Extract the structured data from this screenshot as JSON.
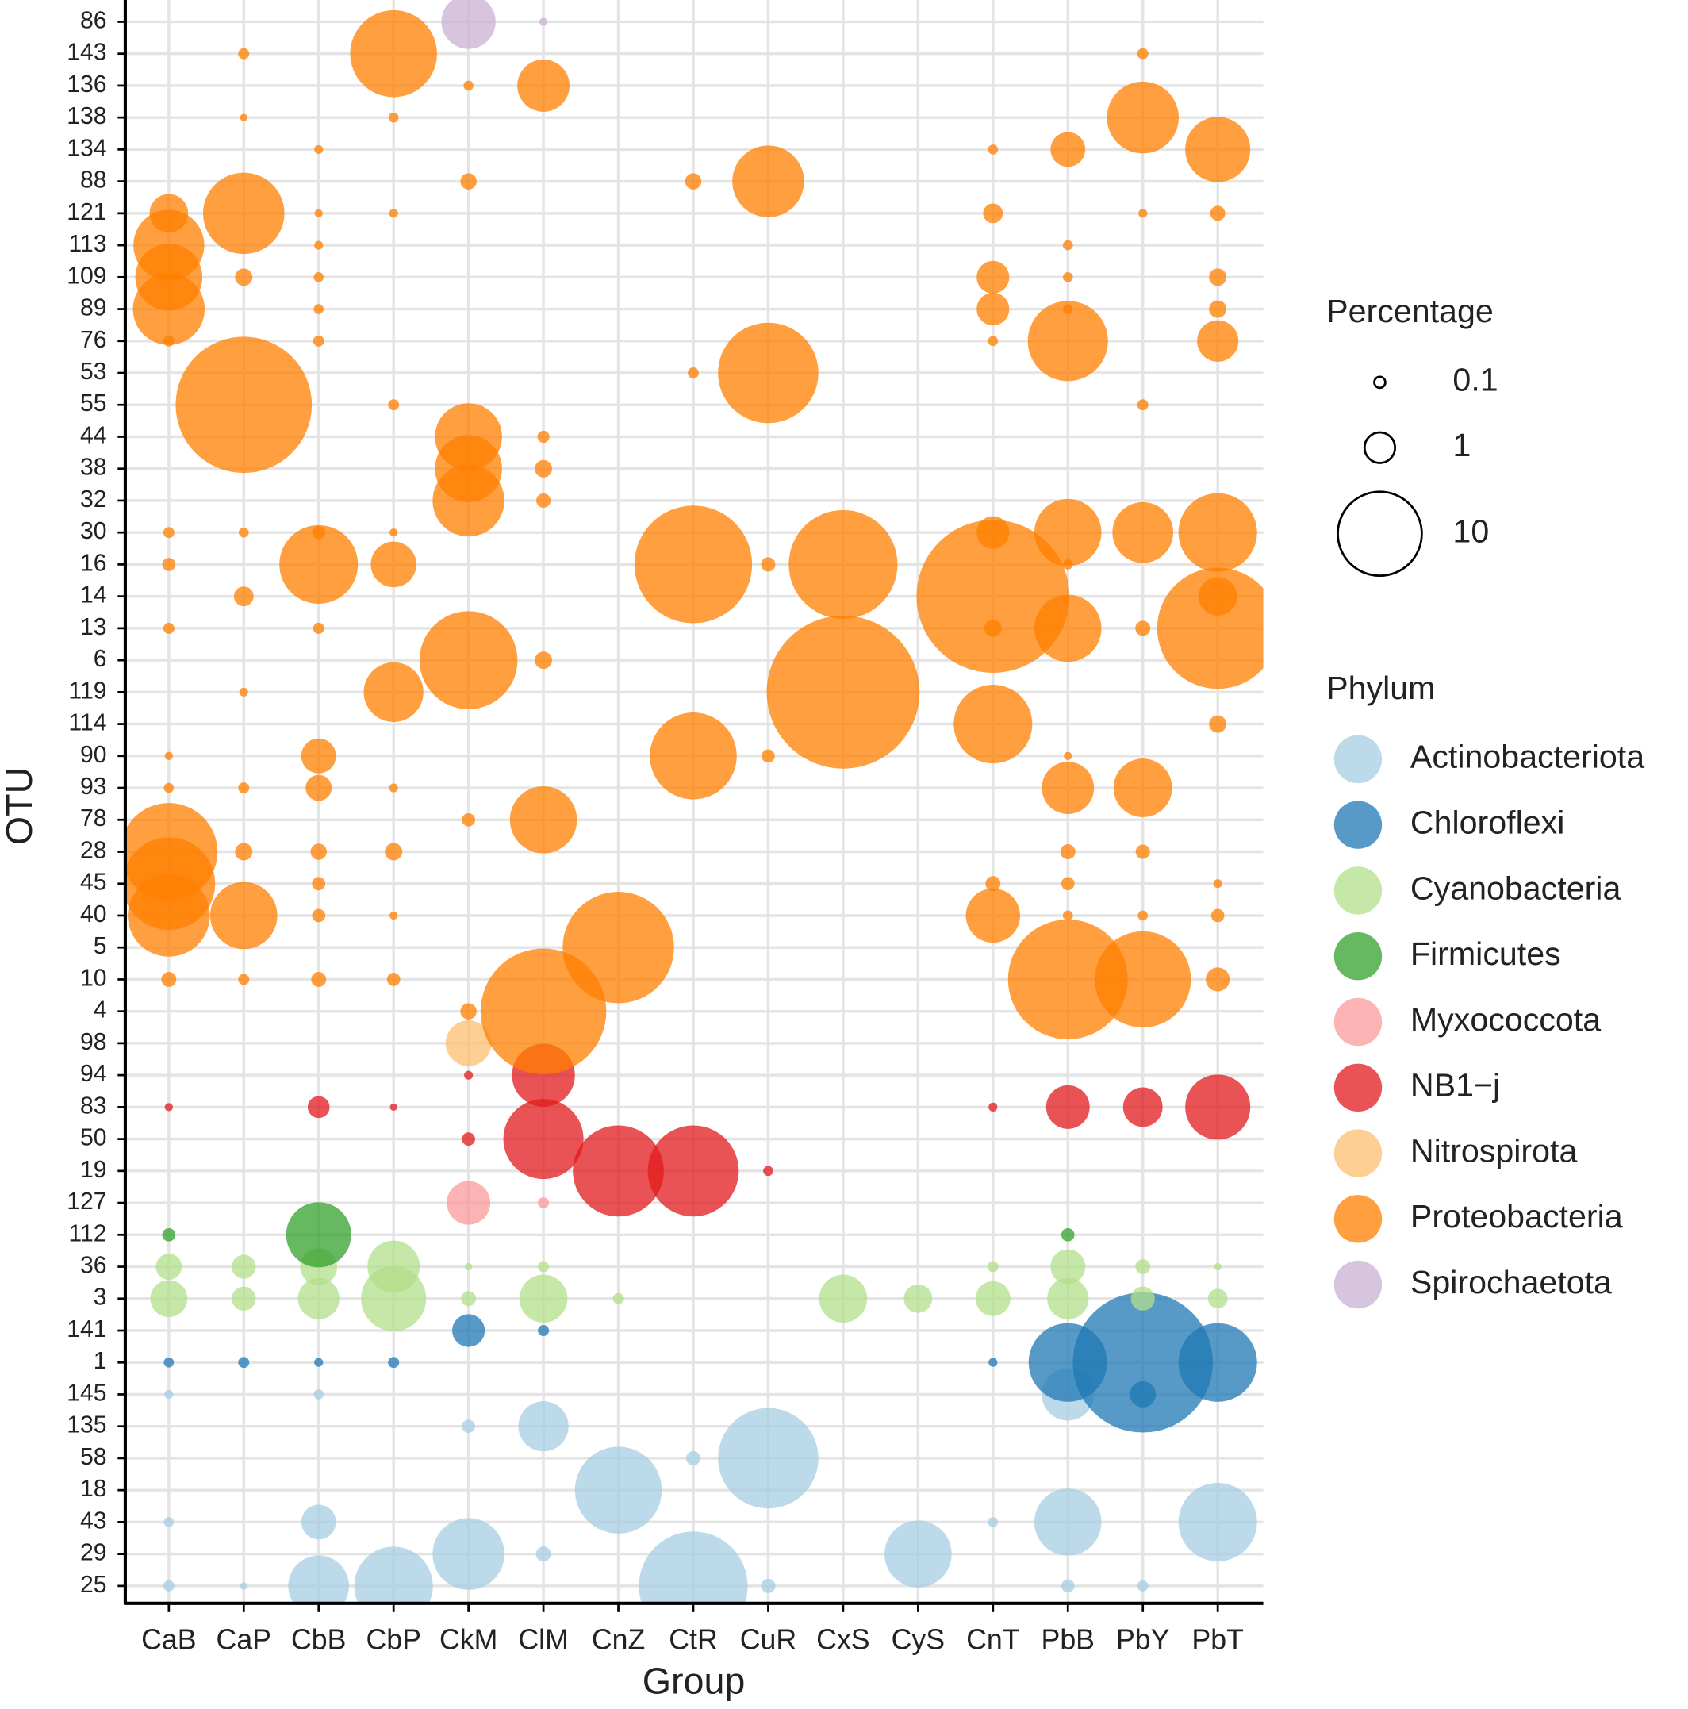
{
  "chart_data": {
    "type": "bubble",
    "x_label": "Group",
    "y_label": "OTU",
    "size_legend_title": "Percentage",
    "size_legend": [
      0.1,
      1,
      10
    ],
    "color_legend_title": "Phylum",
    "grid": true,
    "categories": [
      "CaB",
      "CaP",
      "CbB",
      "CbP",
      "CkM",
      "ClM",
      "CnZ",
      "CtR",
      "CuR",
      "CxS",
      "CyS",
      "CnT",
      "PbB",
      "PbY",
      "PbT"
    ],
    "y_categories": [
      "86",
      "143",
      "136",
      "138",
      "134",
      "88",
      "121",
      "113",
      "109",
      "89",
      "76",
      "53",
      "55",
      "44",
      "38",
      "32",
      "30",
      "16",
      "14",
      "13",
      "6",
      "119",
      "114",
      "90",
      "93",
      "78",
      "28",
      "45",
      "40",
      "5",
      "10",
      "4",
      "98",
      "94",
      "83",
      "50",
      "19",
      "127",
      "112",
      "36",
      "3",
      "141",
      "1",
      "145",
      "135",
      "58",
      "18",
      "43",
      "29",
      "25"
    ],
    "series": [
      {
        "name": "Actinobacteriota",
        "color": "#a6cee3",
        "points": [
          [
            "CaB",
            "145",
            0.06
          ],
          [
            "CaB",
            "43",
            0.08
          ],
          [
            "CaB",
            "25",
            0.1
          ],
          [
            "CaP",
            "25",
            0.04
          ],
          [
            "CbB",
            "145",
            0.08
          ],
          [
            "CbB",
            "43",
            1.35
          ],
          [
            "CbB",
            "25",
            4.8
          ],
          [
            "CbP",
            "25",
            8.6
          ],
          [
            "CkM",
            "135",
            0.15
          ],
          [
            "CkM",
            "29",
            7
          ],
          [
            "ClM",
            "135",
            3.1
          ],
          [
            "ClM",
            "29",
            0.2
          ],
          [
            "CnZ",
            "18",
            10.8
          ],
          [
            "CtR",
            "58",
            0.18
          ],
          [
            "CtR",
            "25",
            18
          ],
          [
            "CuR",
            "58",
            15
          ],
          [
            "CuR",
            "25",
            0.18
          ],
          [
            "CyS",
            "29",
            6
          ],
          [
            "CnT",
            "43",
            0.08
          ],
          [
            "PbB",
            "145",
            3.4
          ],
          [
            "PbB",
            "43",
            6
          ],
          [
            "PbB",
            "25",
            0.15
          ],
          [
            "PbY",
            "25",
            0.1
          ],
          [
            "PbT",
            "43",
            8.6
          ]
        ]
      },
      {
        "name": "Chloroflexi",
        "color": "#1f78b4",
        "points": [
          [
            "CaB",
            "1",
            0.08
          ],
          [
            "CaP",
            "1",
            0.1
          ],
          [
            "CbB",
            "1",
            0.06
          ],
          [
            "CbP",
            "1",
            0.1
          ],
          [
            "CkM",
            "141",
            1.17
          ],
          [
            "ClM",
            "141",
            0.1
          ],
          [
            "CnT",
            "1",
            0.06
          ],
          [
            "PbB",
            "1",
            8.6
          ],
          [
            "PbY",
            "1",
            32
          ],
          [
            "PbY",
            "145",
            0.7
          ],
          [
            "PbT",
            "1",
            8.6
          ]
        ]
      },
      {
        "name": "Cyanobacteria",
        "color": "#b2df8a",
        "points": [
          [
            "CaB",
            "36",
            0.7
          ],
          [
            "CaB",
            "3",
            1.55
          ],
          [
            "CaP",
            "36",
            0.58
          ],
          [
            "CaP",
            "3",
            0.58
          ],
          [
            "CbB",
            "36",
            1.55
          ],
          [
            "CbB",
            "3",
            2
          ],
          [
            "CbP",
            "36",
            3.4
          ],
          [
            "CbP",
            "3",
            5.6
          ],
          [
            "CkM",
            "36",
            0.04
          ],
          [
            "CkM",
            "3",
            0.2
          ],
          [
            "ClM",
            "36",
            0.1
          ],
          [
            "ClM",
            "3",
            2.8
          ],
          [
            "CnZ",
            "3",
            0.1
          ],
          [
            "CxS",
            "3",
            2.8
          ],
          [
            "CyS",
            "3",
            0.85
          ],
          [
            "CnT",
            "36",
            0.1
          ],
          [
            "CnT",
            "3",
            1.35
          ],
          [
            "PbB",
            "36",
            1.35
          ],
          [
            "PbB",
            "3",
            2
          ],
          [
            "PbY",
            "36",
            0.2
          ],
          [
            "PbY",
            "3",
            0.58
          ],
          [
            "PbT",
            "36",
            0.04
          ],
          [
            "PbT",
            "3",
            0.37
          ]
        ]
      },
      {
        "name": "Firmicutes",
        "color": "#33a02c",
        "points": [
          [
            "CaB",
            "112",
            0.15
          ],
          [
            "CbB",
            "112",
            5.6
          ],
          [
            "PbB",
            "112",
            0.15
          ]
        ]
      },
      {
        "name": "Myxococcota",
        "color": "#fb9a99",
        "points": [
          [
            "CkM",
            "127",
            2.25
          ],
          [
            "ClM",
            "127",
            0.1
          ]
        ]
      },
      {
        "name": "NB1−j",
        "color": "#e31a1c",
        "points": [
          [
            "CaB",
            "83",
            0.05
          ],
          [
            "CbB",
            "83",
            0.47
          ],
          [
            "CbP",
            "83",
            0.04
          ],
          [
            "CkM",
            "94",
            0.06
          ],
          [
            "CkM",
            "50",
            0.15
          ],
          [
            "ClM",
            "94",
            5.2
          ],
          [
            "ClM",
            "50",
            9
          ],
          [
            "CnZ",
            "19",
            12
          ],
          [
            "CtR",
            "19",
            12
          ],
          [
            "CuR",
            "19",
            0.08
          ],
          [
            "CnT",
            "83",
            0.06
          ],
          [
            "PbB",
            "83",
            2.25
          ],
          [
            "PbY",
            "83",
            1.8
          ],
          [
            "PbT",
            "83",
            5.6
          ]
        ]
      },
      {
        "name": "Nitrospirota",
        "color": "#fdbf6f",
        "points": [
          [
            "CkM",
            "98",
            2.5
          ]
        ]
      },
      {
        "name": "Proteobacteria",
        "color": "#ff7f00",
        "points": [
          [
            "CaB",
            "121",
            1.7
          ],
          [
            "CaB",
            "113",
            6.8
          ],
          [
            "CaB",
            "109",
            6
          ],
          [
            "CaB",
            "89",
            7
          ],
          [
            "CaB",
            "76",
            0.1
          ],
          [
            "CaB",
            "30",
            0.1
          ],
          [
            "CaB",
            "16",
            0.15
          ],
          [
            "CaB",
            "13",
            0.1
          ],
          [
            "CaB",
            "90",
            0.05
          ],
          [
            "CaB",
            "93",
            0.08
          ],
          [
            "CaB",
            "28",
            14
          ],
          [
            "CaB",
            "45",
            12.5
          ],
          [
            "CaB",
            "40",
            9.5
          ],
          [
            "CaB",
            "10",
            0.2
          ],
          [
            "CaP",
            "143",
            0.1
          ],
          [
            "CaP",
            "138",
            0.04
          ],
          [
            "CaP",
            "121",
            9.3
          ],
          [
            "CaP",
            "109",
            0.28
          ],
          [
            "CaP",
            "55",
            30
          ],
          [
            "CaP",
            "30",
            0.08
          ],
          [
            "CaP",
            "14",
            0.37
          ],
          [
            "CaP",
            "119",
            0.06
          ],
          [
            "CaP",
            "93",
            0.1
          ],
          [
            "CaP",
            "28",
            0.28
          ],
          [
            "CaP",
            "40",
            6
          ],
          [
            "CaP",
            "10",
            0.1
          ],
          [
            "CbB",
            "134",
            0.06
          ],
          [
            "CbB",
            "121",
            0.05
          ],
          [
            "CbB",
            "113",
            0.06
          ],
          [
            "CbB",
            "109",
            0.08
          ],
          [
            "CbB",
            "89",
            0.08
          ],
          [
            "CbB",
            "76",
            0.1
          ],
          [
            "CbB",
            "30",
            0.15
          ],
          [
            "CbB",
            "16",
            8.6
          ],
          [
            "CbB",
            "13",
            0.1
          ],
          [
            "CbB",
            "90",
            1.35
          ],
          [
            "CbB",
            "93",
            0.7
          ],
          [
            "CbB",
            "28",
            0.24
          ],
          [
            "CbB",
            "45",
            0.15
          ],
          [
            "CbB",
            "40",
            0.15
          ],
          [
            "CbB",
            "10",
            0.2
          ],
          [
            "CbP",
            "143",
            10.8
          ],
          [
            "CbP",
            "138",
            0.08
          ],
          [
            "CbP",
            "121",
            0.06
          ],
          [
            "CbP",
            "55",
            0.1
          ],
          [
            "CbP",
            "30",
            0.05
          ],
          [
            "CbP",
            "16",
            2.5
          ],
          [
            "CbP",
            "119",
            4.6
          ],
          [
            "CbP",
            "93",
            0.06
          ],
          [
            "CbP",
            "28",
            0.28
          ],
          [
            "CbP",
            "40",
            0.05
          ],
          [
            "CbP",
            "10",
            0.15
          ],
          [
            "CkM",
            "136",
            0.08
          ],
          [
            "CkM",
            "88",
            0.24
          ],
          [
            "CkM",
            "44",
            6
          ],
          [
            "CkM",
            "38",
            6
          ],
          [
            "CkM",
            "32",
            7
          ],
          [
            "CkM",
            "6",
            14.2
          ],
          [
            "CkM",
            "78",
            0.15
          ],
          [
            "CkM",
            "4",
            0.24
          ],
          [
            "ClM",
            "136",
            3.4
          ],
          [
            "ClM",
            "44",
            0.12
          ],
          [
            "ClM",
            "38",
            0.28
          ],
          [
            "ClM",
            "32",
            0.18
          ],
          [
            "ClM",
            "6",
            0.28
          ],
          [
            "ClM",
            "78",
            6
          ],
          [
            "ClM",
            "4",
            25
          ],
          [
            "CnZ",
            "5",
            19
          ],
          [
            "CtR",
            "88",
            0.24
          ],
          [
            "CtR",
            "53",
            0.1
          ],
          [
            "CtR",
            "16",
            21.5
          ],
          [
            "CtR",
            "90",
            10.8
          ],
          [
            "CuR",
            "88",
            7
          ],
          [
            "CuR",
            "53",
            15
          ],
          [
            "CuR",
            "16",
            0.18
          ],
          [
            "CuR",
            "90",
            0.15
          ],
          [
            "CxS",
            "16",
            18
          ],
          [
            "CxS",
            "119",
            39
          ],
          [
            "CnT",
            "134",
            0.08
          ],
          [
            "CnT",
            "121",
            0.37
          ],
          [
            "CnT",
            "109",
            1.17
          ],
          [
            "CnT",
            "89",
            1.17
          ],
          [
            "CnT",
            "76",
            0.08
          ],
          [
            "CnT",
            "30",
            1.17
          ],
          [
            "CnT",
            "14",
            39
          ],
          [
            "CnT",
            "13",
            0.28
          ],
          [
            "CnT",
            "114",
            8.6
          ],
          [
            "CnT",
            "45",
            0.2
          ],
          [
            "CnT",
            "40",
            3.7
          ],
          [
            "PbB",
            "134",
            1.35
          ],
          [
            "PbB",
            "113",
            0.08
          ],
          [
            "PbB",
            "109",
            0.08
          ],
          [
            "PbB",
            "89",
            0.08
          ],
          [
            "PbB",
            "76",
            9
          ],
          [
            "PbB",
            "30",
            6
          ],
          [
            "PbB",
            "16",
            0.08
          ],
          [
            "PbB",
            "13",
            6
          ],
          [
            "PbB",
            "90",
            0.05
          ],
          [
            "PbB",
            "93",
            3.4
          ],
          [
            "PbB",
            "28",
            0.2
          ],
          [
            "PbB",
            "45",
            0.15
          ],
          [
            "PbB",
            "40",
            0.08
          ],
          [
            "PbB",
            "10",
            22.4
          ],
          [
            "PbY",
            "143",
            0.1
          ],
          [
            "PbY",
            "138",
            7
          ],
          [
            "PbY",
            "121",
            0.06
          ],
          [
            "PbY",
            "55",
            0.1
          ],
          [
            "PbY",
            "30",
            4.8
          ],
          [
            "PbY",
            "13",
            0.2
          ],
          [
            "PbY",
            "93",
            4.4
          ],
          [
            "PbY",
            "28",
            0.18
          ],
          [
            "PbY",
            "40",
            0.08
          ],
          [
            "PbY",
            "10",
            13.6
          ],
          [
            "PbT",
            "134",
            5.6
          ],
          [
            "PbT",
            "121",
            0.2
          ],
          [
            "PbT",
            "109",
            0.28
          ],
          [
            "PbT",
            "89",
            0.28
          ],
          [
            "PbT",
            "76",
            2
          ],
          [
            "PbT",
            "30",
            8.6
          ],
          [
            "PbT",
            "14",
            1.7
          ],
          [
            "PbT",
            "13",
            23
          ],
          [
            "PbT",
            "114",
            0.28
          ],
          [
            "PbT",
            "45",
            0.06
          ],
          [
            "PbT",
            "40",
            0.15
          ],
          [
            "PbT",
            "10",
            0.58
          ]
        ]
      },
      {
        "name": "Spirochaetota",
        "color": "#cab2d6",
        "points": [
          [
            "CkM",
            "86",
            3.7
          ],
          [
            "ClM",
            "86",
            0.05
          ]
        ]
      }
    ]
  }
}
